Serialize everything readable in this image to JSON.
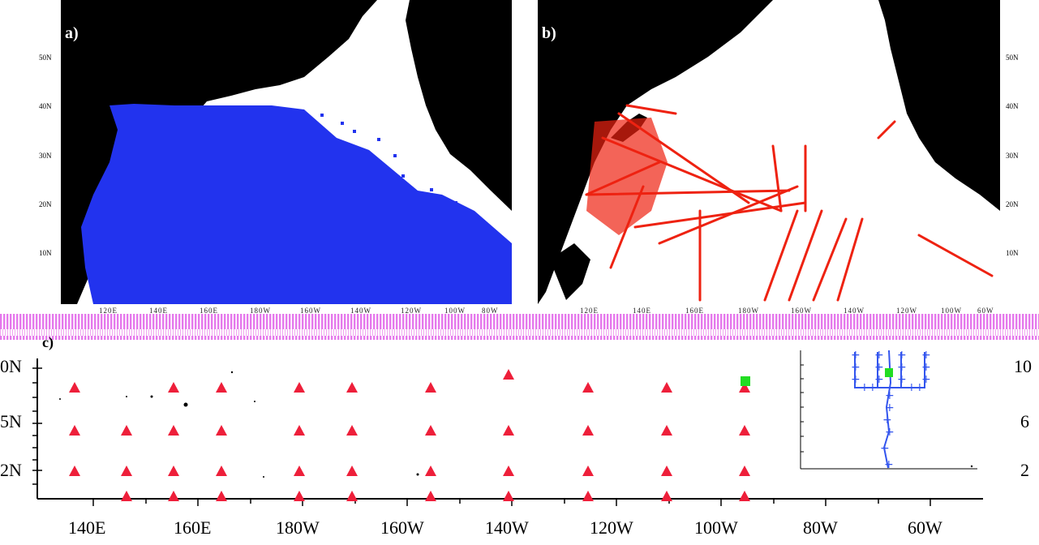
{
  "panels": {
    "a": {
      "label": "a)",
      "marker_color": "#2233ee"
    },
    "b": {
      "label": "b)",
      "marker_color": "#ee2211"
    },
    "c": {
      "label": "c)",
      "marker_color": "#ee1f3a"
    }
  },
  "top_lat_labels": [
    "50N",
    "40N",
    "30N",
    "20N",
    "10N"
  ],
  "top_lon_labels": [
    "120E",
    "140E",
    "160E",
    "180W",
    "160W",
    "140W",
    "120W",
    "100W",
    "80W",
    "60W"
  ],
  "c_lat_labels_left": [
    "0N",
    "5N",
    "2N"
  ],
  "c_lat_labels_right": [
    "10",
    "6",
    "2"
  ],
  "c_lon_labels": [
    "140E",
    "160E",
    "180W",
    "160W",
    "140W",
    "120W",
    "100W",
    "80W",
    "60W"
  ],
  "colors": {
    "land": "#000000",
    "ocean": "#ffffff",
    "stripe": "#e060e8",
    "green_marker": "#22dd22",
    "inset_profile": "#3355ee"
  },
  "icons": {
    "buoy": "red-triangle",
    "profile_point": "blue-cross",
    "selected": "green-square"
  }
}
